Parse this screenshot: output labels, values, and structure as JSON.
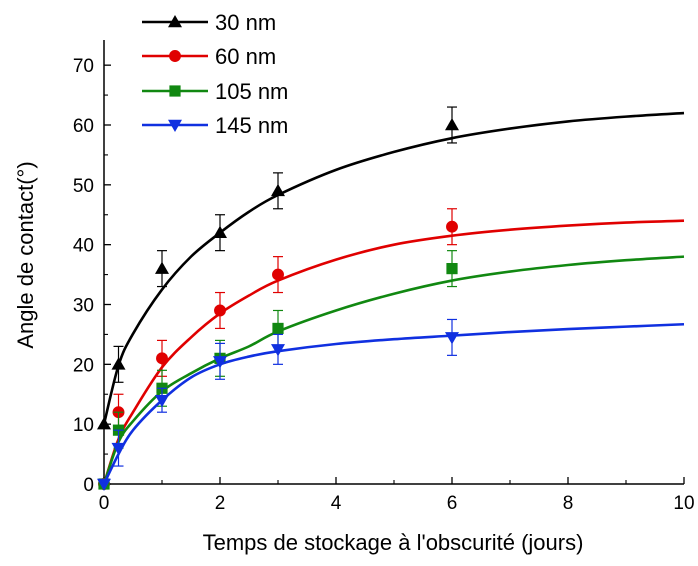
{
  "chart_data": {
    "type": "scatter",
    "xlabel": "Temps de stockage à l'obscurité (jours)",
    "ylabel": "Angle de contact(°)",
    "xlim": [
      0,
      10
    ],
    "ylim": [
      0,
      75
    ],
    "x_ticks": [
      0,
      2,
      4,
      6,
      8,
      10
    ],
    "y_ticks": [
      0,
      10,
      20,
      30,
      40,
      50,
      60,
      70
    ],
    "grid": false,
    "legend_position": "top-left",
    "series": [
      {
        "name": "30 nm",
        "color": "#000000",
        "marker": "triangle-up",
        "points": [
          {
            "x": 0,
            "y": 10,
            "err": 0
          },
          {
            "x": 0.25,
            "y": 20,
            "err": 3
          },
          {
            "x": 1,
            "y": 36,
            "err": 3
          },
          {
            "x": 2,
            "y": 42,
            "err": 3
          },
          {
            "x": 3,
            "y": 49,
            "err": 3
          },
          {
            "x": 6,
            "y": 60,
            "err": 3
          }
        ],
        "fit": [
          [
            0,
            10
          ],
          [
            0.25,
            19.8
          ],
          [
            0.5,
            25.1
          ],
          [
            1,
            32.5
          ],
          [
            1.5,
            38
          ],
          [
            2,
            42
          ],
          [
            2.5,
            45.5
          ],
          [
            3,
            48.3
          ],
          [
            4,
            52.5
          ],
          [
            5,
            55.5
          ],
          [
            6,
            57.8
          ],
          [
            7,
            59.4
          ],
          [
            8,
            60.6
          ],
          [
            9,
            61.4
          ],
          [
            10,
            62
          ]
        ]
      },
      {
        "name": "60 nm",
        "color": "#e00000",
        "marker": "circle",
        "points": [
          {
            "x": 0,
            "y": 0,
            "err": 0
          },
          {
            "x": 0.25,
            "y": 12,
            "err": 3
          },
          {
            "x": 1,
            "y": 21,
            "err": 3
          },
          {
            "x": 2,
            "y": 29,
            "err": 3
          },
          {
            "x": 3,
            "y": 35,
            "err": 3
          },
          {
            "x": 6,
            "y": 43,
            "err": 3
          }
        ],
        "fit": [
          [
            0,
            0
          ],
          [
            0.25,
            7.5
          ],
          [
            0.5,
            12
          ],
          [
            1,
            19.5
          ],
          [
            1.5,
            24.5
          ],
          [
            2,
            28.5
          ],
          [
            2.5,
            31.5
          ],
          [
            3,
            34
          ],
          [
            4,
            37.5
          ],
          [
            5,
            40
          ],
          [
            6,
            41.5
          ],
          [
            7,
            42.5
          ],
          [
            8,
            43.2
          ],
          [
            9,
            43.7
          ],
          [
            10,
            44
          ]
        ]
      },
      {
        "name": "105 nm",
        "color": "#118811",
        "marker": "square",
        "points": [
          {
            "x": 0,
            "y": 0,
            "err": 0
          },
          {
            "x": 0.25,
            "y": 9,
            "err": 3
          },
          {
            "x": 1,
            "y": 16,
            "err": 3
          },
          {
            "x": 2,
            "y": 21,
            "err": 3
          },
          {
            "x": 3,
            "y": 26,
            "err": 3
          },
          {
            "x": 6,
            "y": 36,
            "err": 3
          }
        ],
        "fit": [
          [
            0,
            0
          ],
          [
            0.25,
            7
          ],
          [
            0.5,
            10.5
          ],
          [
            1,
            15.5
          ],
          [
            1.5,
            18.5
          ],
          [
            2,
            21
          ],
          [
            2.5,
            23
          ],
          [
            3,
            25.5
          ],
          [
            4,
            29
          ],
          [
            5,
            31.8
          ],
          [
            6,
            34
          ],
          [
            7,
            35.5
          ],
          [
            8,
            36.6
          ],
          [
            9,
            37.4
          ],
          [
            10,
            38
          ]
        ]
      },
      {
        "name": "145 nm",
        "color": "#1030e0",
        "marker": "triangle-down",
        "points": [
          {
            "x": 0,
            "y": 0,
            "err": 0
          },
          {
            "x": 0.25,
            "y": 6,
            "err": 3
          },
          {
            "x": 1,
            "y": 14,
            "err": 2
          },
          {
            "x": 2,
            "y": 20.5,
            "err": 3
          },
          {
            "x": 3,
            "y": 22.5,
            "err": 2.5
          },
          {
            "x": 6,
            "y": 24.5,
            "err": 3
          }
        ],
        "fit": [
          [
            0,
            0
          ],
          [
            0.25,
            5
          ],
          [
            0.5,
            9
          ],
          [
            1,
            14
          ],
          [
            1.5,
            17.8
          ],
          [
            2,
            20
          ],
          [
            2.5,
            21.3
          ],
          [
            3,
            22.2
          ],
          [
            4,
            23.4
          ],
          [
            5,
            24.2
          ],
          [
            6,
            24.8
          ],
          [
            7,
            25.4
          ],
          [
            8,
            25.9
          ],
          [
            9,
            26.3
          ],
          [
            10,
            26.7
          ]
        ]
      }
    ]
  }
}
